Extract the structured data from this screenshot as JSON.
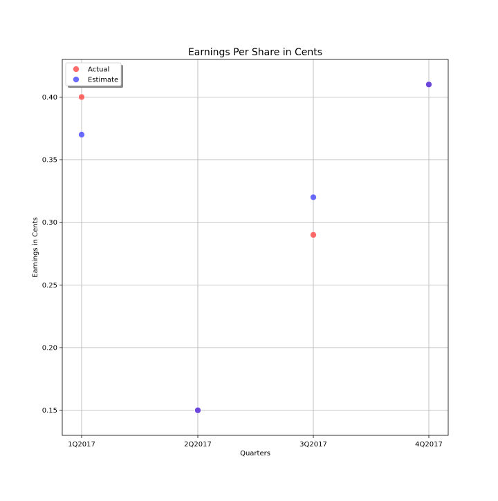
{
  "chart_data": {
    "type": "scatter",
    "title": "Earnings Per Share in Cents",
    "xlabel": "Quarters",
    "ylabel": "Earnings in Cents",
    "categories": [
      "1Q2017",
      "2Q2017",
      "3Q2017",
      "4Q2017"
    ],
    "yticks": [
      "0.15",
      "0.20",
      "0.25",
      "0.30",
      "0.35",
      "0.40"
    ],
    "ylim": [
      0.13,
      0.43
    ],
    "grid": true,
    "legend_position": "top-left",
    "series": [
      {
        "name": "Actual",
        "color": "#ff3b3b",
        "values": [
          0.4,
          0.15,
          0.29,
          0.41
        ]
      },
      {
        "name": "Estimate",
        "color": "#3b3bff",
        "values": [
          0.37,
          0.15,
          0.32,
          0.41
        ]
      }
    ]
  }
}
